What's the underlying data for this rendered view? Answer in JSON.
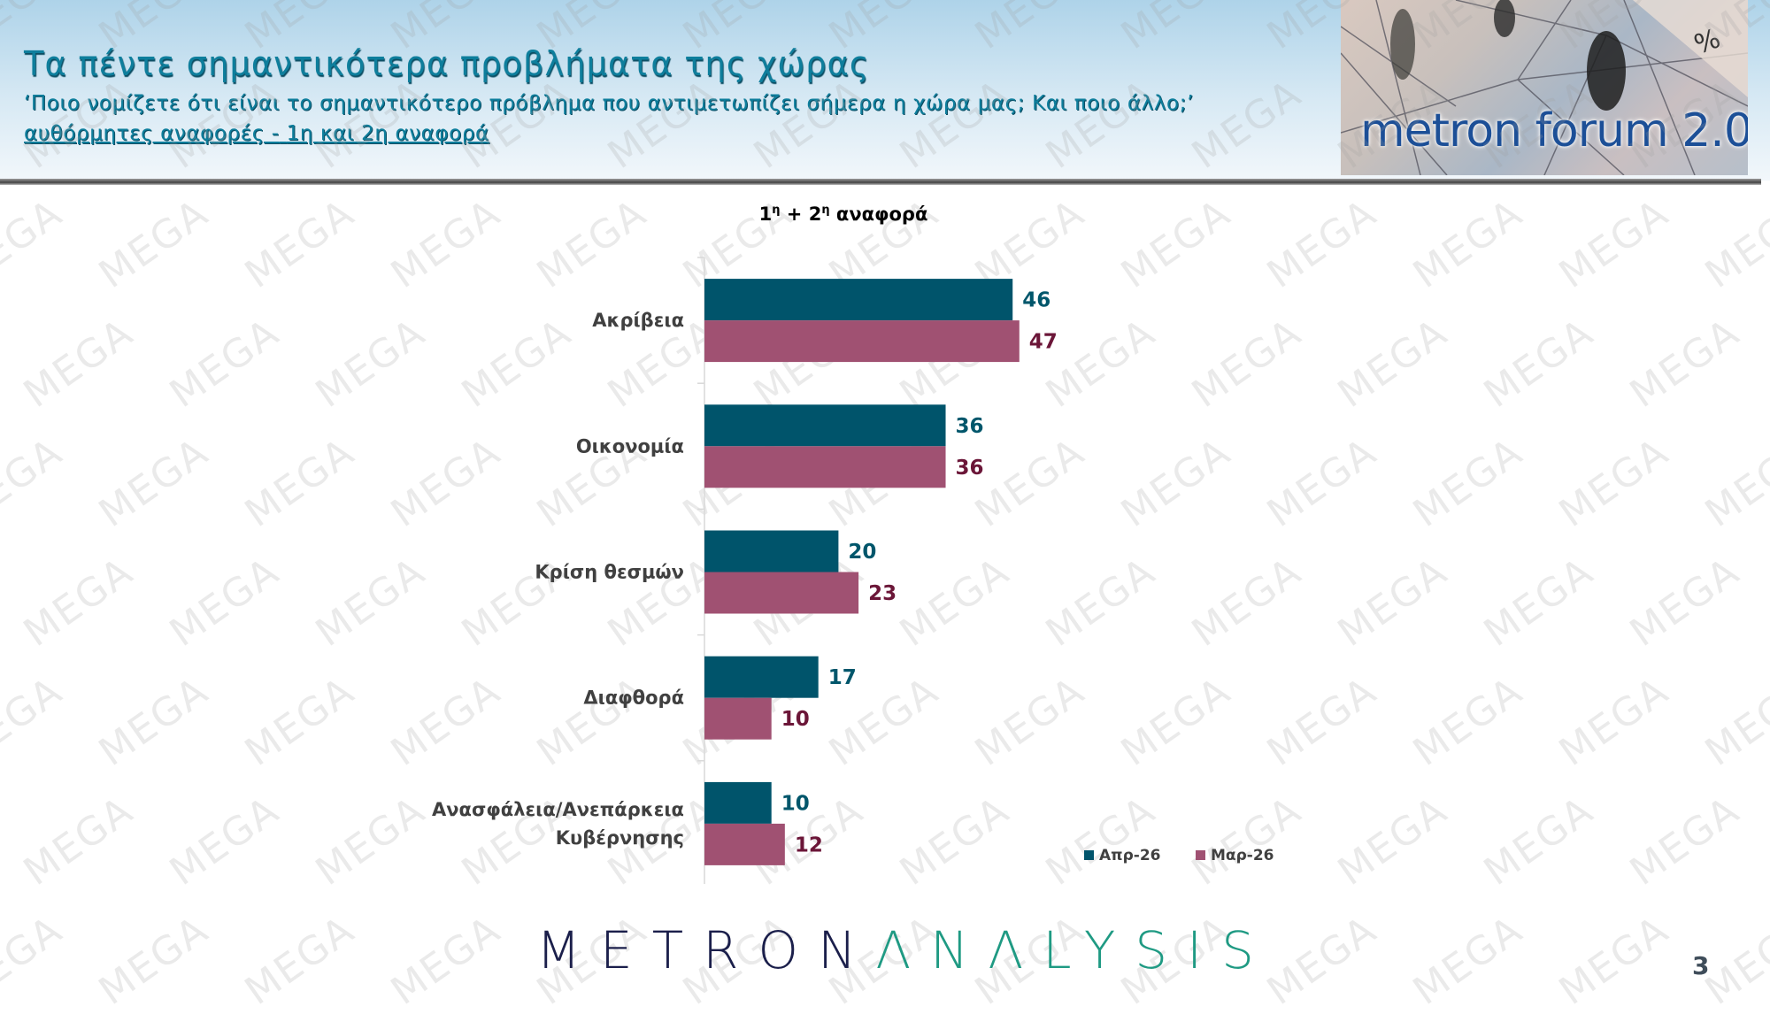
{
  "header": {
    "title": "Τα πέντε σημαντικότερα προβλήματα της χώρας",
    "question": "‘Ποιο νομίζετε ότι είναι το σημαντικότερο πρόβλημα που αντιμετωπίζει σήμερα η χώρα μας; Και ποιο άλλο;’",
    "note_part1": "αυθόρμητες αναφορές -",
    "note_part2": "1η και 2η αναφορά"
  },
  "banner": {
    "text": "metron forum 2.0",
    "symbol": "%"
  },
  "watermark": "MEGA",
  "chart_data": {
    "type": "bar",
    "orientation": "horizontal",
    "title": "1η + 2η αναφορά",
    "unit": "%",
    "categories": [
      "Ακρίβεια",
      "Οικονομία",
      "Κρίση θεσμών",
      "Διαφθορά",
      "Ανασφάλεια/Ανεπάρκεια Κυβέρνησης"
    ],
    "series": [
      {
        "name": "Απρ-26",
        "values": [
          46,
          36,
          20,
          17,
          10
        ],
        "color": "#00546b",
        "label_color": "#00566b"
      },
      {
        "name": "Μαρ-26",
        "values": [
          47,
          36,
          23,
          10,
          12
        ],
        "color": "#a05172",
        "label_color": "#6b1638"
      }
    ],
    "data_labels": true,
    "grid": false,
    "legend": "bottom-right"
  },
  "footer": {
    "logo_part1": "METRON",
    "logo_part2": "ΛNΛLYSIS",
    "page_number": "3"
  }
}
